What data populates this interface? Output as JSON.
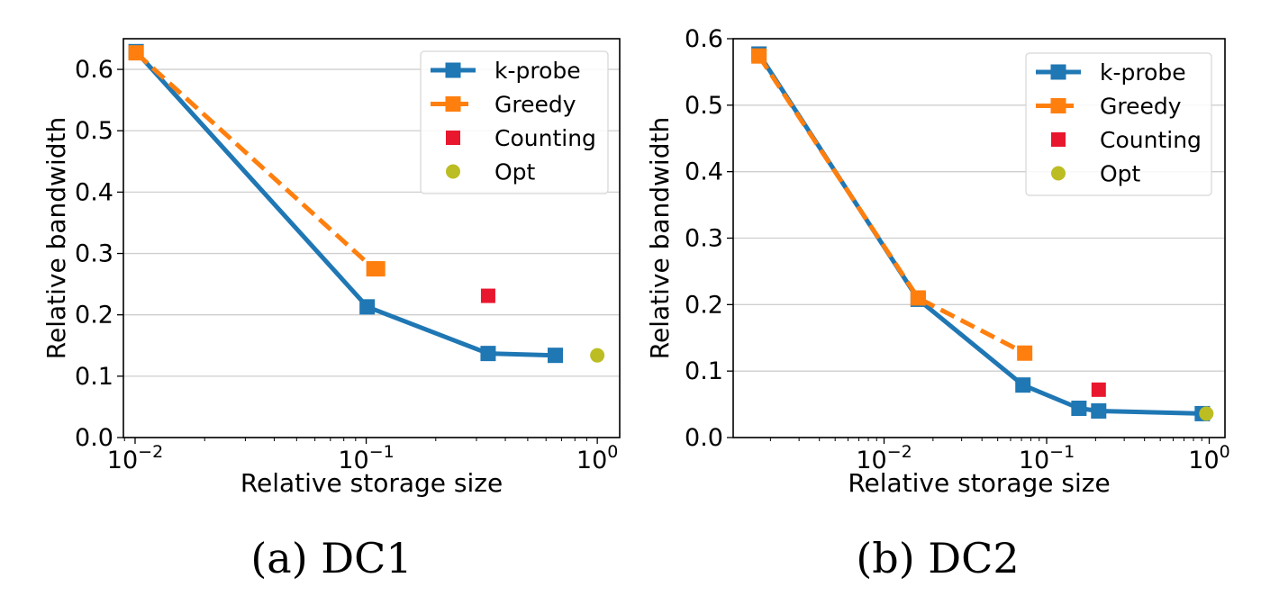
{
  "chart_data": [
    {
      "type": "line",
      "caption": "(a) DC1",
      "xscale": "log",
      "xlabel": "Relative storage size",
      "ylabel": "Relative bandwidth",
      "xlim": [
        0.0089,
        1.25
      ],
      "ylim": [
        0.0,
        0.65
      ],
      "xticks": [
        {
          "value": 0.01,
          "base": "10",
          "exp": "−2"
        },
        {
          "value": 0.1,
          "base": "10",
          "exp": "−1"
        },
        {
          "value": 1,
          "base": "10",
          "exp": "0"
        }
      ],
      "yticks": [
        {
          "value": 0.0,
          "label": "0.0"
        },
        {
          "value": 0.1,
          "label": "0.1"
        },
        {
          "value": 0.2,
          "label": "0.2"
        },
        {
          "value": 0.3,
          "label": "0.3"
        },
        {
          "value": 0.4,
          "label": "0.4"
        },
        {
          "value": 0.5,
          "label": "0.5"
        },
        {
          "value": 0.6,
          "label": "0.6"
        }
      ],
      "grid": "horizontal",
      "legend_position": "top-right",
      "series": [
        {
          "name": "k-probe",
          "style": "line",
          "color": "#1f77b4",
          "dashed": false,
          "marker": "square",
          "x": [
            0.0101,
            0.101,
            0.337,
            0.658
          ],
          "y": [
            0.629,
            0.213,
            0.137,
            0.134
          ]
        },
        {
          "name": "Greedy",
          "style": "line",
          "color": "#ff7f0e",
          "dashed": true,
          "marker": "square",
          "x": [
            0.0101,
            0.108,
            0.112
          ],
          "y": [
            0.627,
            0.275,
            0.275
          ]
        },
        {
          "name": "Counting",
          "style": "point",
          "color": "#e8172e",
          "marker": "square",
          "x": [
            0.337
          ],
          "y": [
            0.231
          ]
        },
        {
          "name": "Opt",
          "style": "point",
          "color": "#bcbd22",
          "marker": "circle",
          "x": [
            1.0
          ],
          "y": [
            0.134
          ]
        }
      ]
    },
    {
      "type": "line",
      "caption": "(b) DC2",
      "xscale": "log",
      "xlabel": "Relative storage size",
      "ylabel": "Relative bandwidth",
      "xlim": [
        0.00118,
        1.25
      ],
      "ylim": [
        0.0,
        0.6
      ],
      "xticks": [
        {
          "value": 0.01,
          "base": "10",
          "exp": "−2"
        },
        {
          "value": 0.1,
          "base": "10",
          "exp": "−1"
        },
        {
          "value": 1,
          "base": "10",
          "exp": "0"
        }
      ],
      "yticks": [
        {
          "value": 0.0,
          "label": "0.0"
        },
        {
          "value": 0.1,
          "label": "0.1"
        },
        {
          "value": 0.2,
          "label": "0.2"
        },
        {
          "value": 0.3,
          "label": "0.3"
        },
        {
          "value": 0.4,
          "label": "0.4"
        },
        {
          "value": 0.5,
          "label": "0.5"
        },
        {
          "value": 0.6,
          "label": "0.6"
        }
      ],
      "grid": "horizontal",
      "legend_position": "top-right",
      "series": [
        {
          "name": "k-probe",
          "style": "line",
          "color": "#1f77b4",
          "dashed": false,
          "marker": "square",
          "x": [
            0.0017,
            0.0162,
            0.0715,
            0.158,
            0.209,
            0.907
          ],
          "y": [
            0.577,
            0.208,
            0.079,
            0.044,
            0.04,
            0.036
          ]
        },
        {
          "name": "Greedy",
          "style": "line",
          "color": "#ff7f0e",
          "dashed": true,
          "marker": "square",
          "x": [
            0.0017,
            0.0162,
            0.0733
          ],
          "y": [
            0.574,
            0.21,
            0.127
          ]
        },
        {
          "name": "Counting",
          "style": "point",
          "color": "#e8172e",
          "marker": "square",
          "x": [
            0.209
          ],
          "y": [
            0.072
          ]
        },
        {
          "name": "Opt",
          "style": "point",
          "color": "#bcbd22",
          "marker": "circle",
          "x": [
            0.96
          ],
          "y": [
            0.036
          ]
        }
      ]
    }
  ]
}
